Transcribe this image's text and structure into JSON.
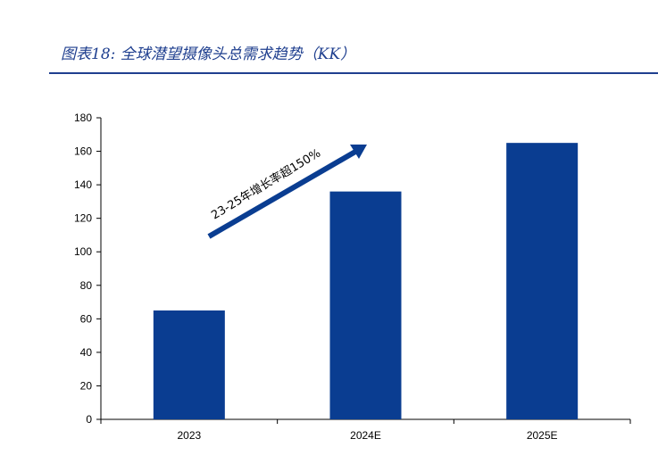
{
  "header": {
    "title": "图表18:  全球潜望摄像头总需求趋势（KK）"
  },
  "chart_data": {
    "type": "bar",
    "title": "全球潜望摄像头总需求趋势（KK）",
    "xlabel": "",
    "ylabel": "",
    "categories": [
      "2023",
      "2024E",
      "2025E"
    ],
    "values": [
      65,
      136,
      165
    ],
    "ylim": [
      0,
      180
    ],
    "yticks": [
      0,
      20,
      40,
      60,
      80,
      100,
      120,
      140,
      160,
      180
    ],
    "bar_color": "#0a3d91",
    "grid": false,
    "annotation": "23-25年增长率超150%"
  }
}
